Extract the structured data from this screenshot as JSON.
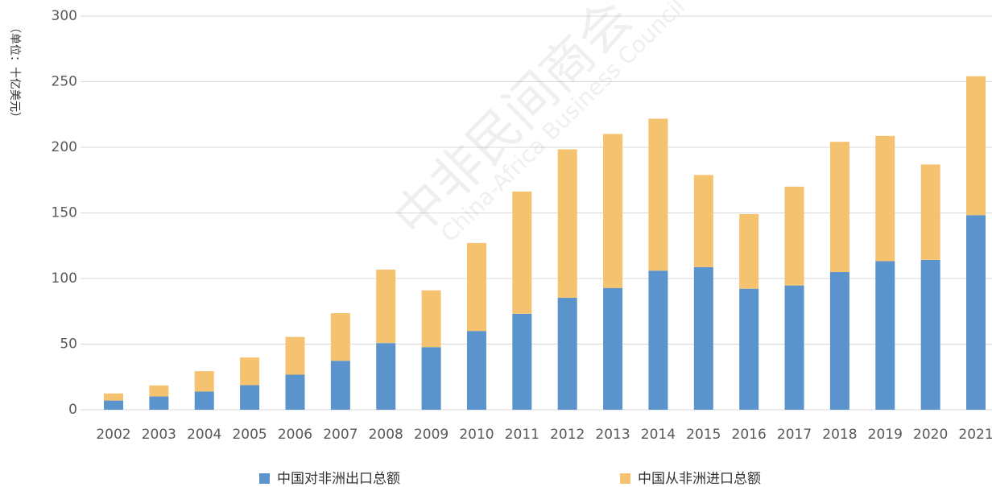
{
  "chart_data": {
    "type": "stacked_bar",
    "y_label": "（单位：十亿美元）",
    "watermark": "中非民间商会",
    "watermark_en": "China-Africa Business Council",
    "categories": [
      "2002",
      "2003",
      "2004",
      "2005",
      "2006",
      "2007",
      "2008",
      "2009",
      "2010",
      "2011",
      "2012",
      "2013",
      "2014",
      "2015",
      "2016",
      "2017",
      "2018",
      "2019",
      "2020",
      "2021"
    ],
    "series": [
      {
        "name": "中国对非洲出口总额",
        "color": "#5b93cc",
        "values": [
          7.0,
          10.1,
          13.8,
          18.7,
          26.7,
          37.3,
          50.8,
          47.7,
          60.0,
          73.1,
          85.3,
          92.8,
          106.0,
          108.7,
          92.2,
          94.7,
          104.9,
          113.2,
          114.2,
          148.3
        ]
      },
      {
        "name": "中国从非洲进口总额",
        "color": "#f5c26f",
        "values": [
          5.4,
          8.4,
          15.6,
          21.1,
          28.8,
          36.3,
          56.0,
          43.3,
          67.1,
          93.2,
          113.2,
          117.4,
          115.8,
          70.2,
          56.9,
          75.3,
          99.3,
          95.5,
          72.7,
          105.9
        ]
      }
    ],
    "ylim": [
      0,
      300
    ],
    "yticks": [
      0,
      50,
      100,
      150,
      200,
      250,
      300
    ],
    "grid": true,
    "legend": "bottom"
  }
}
